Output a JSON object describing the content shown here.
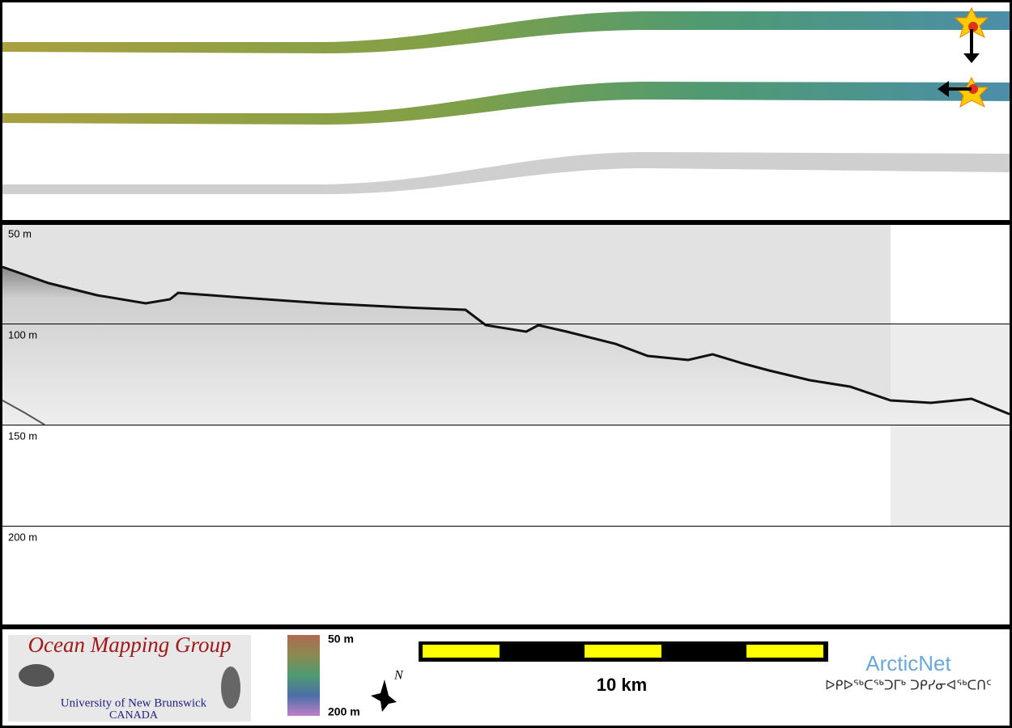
{
  "depth_labels": [
    "50 m",
    "100 m",
    "150 m",
    "200 m"
  ],
  "logo": {
    "title": "Ocean Mapping Group",
    "university": "University of New Brunswick",
    "country": "CANADA"
  },
  "colorbar": {
    "top_label": "50 m",
    "bottom_label": "200 m"
  },
  "north_arrow": "N",
  "scale_bar": "10 km",
  "partner": {
    "name": "ArcticNet",
    "syllabics": "ᐅᑭᐅᖅᑕᖅᑐᒥᒃ ᑐᑭᓯᓂᐊᖅᑕᑎᑦ"
  }
}
